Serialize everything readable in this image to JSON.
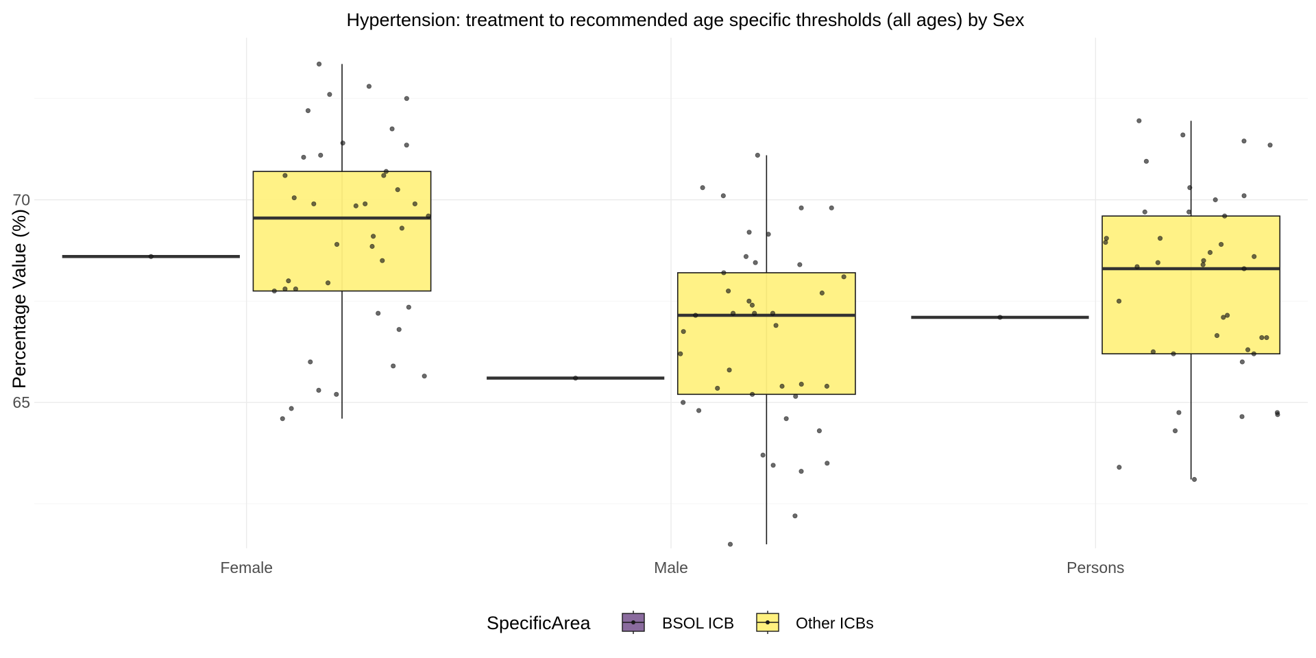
{
  "chart_data": {
    "type": "boxplot",
    "title": "Hypertension: treatment to recommended age specific thresholds (all ages) by Sex",
    "xlabel": "",
    "ylabel": "Percentage Value (%)",
    "categories": [
      "Female",
      "Male",
      "Persons"
    ],
    "ylim": [
      61.4,
      74.0
    ],
    "yticks": [
      65,
      70
    ],
    "grid": true,
    "legend": {
      "title": "SpecificArea",
      "position": "bottom",
      "entries": [
        {
          "name": "BSOL ICB",
          "color": "#8a6b9e"
        },
        {
          "name": "Other ICBs",
          "color": "#fff17f"
        }
      ]
    },
    "series": [
      {
        "name": "BSOL ICB",
        "color": "#8a6b9e",
        "boxes": [
          {
            "category": "Female",
            "min": 68.6,
            "q1": 68.6,
            "median": 68.6,
            "q3": 68.6,
            "max": 68.6
          },
          {
            "category": "Male",
            "min": 65.6,
            "q1": 65.6,
            "median": 65.6,
            "q3": 65.6,
            "max": 65.6
          },
          {
            "category": "Persons",
            "min": 67.1,
            "q1": 67.1,
            "median": 67.1,
            "q3": 67.1,
            "max": 67.1
          }
        ],
        "points": {
          "Female": [
            68.6
          ],
          "Male": [
            65.6
          ],
          "Persons": [
            67.1
          ]
        }
      },
      {
        "name": "Other ICBs",
        "color": "#fff17f",
        "boxes": [
          {
            "category": "Female",
            "min": 64.6,
            "q1": 67.75,
            "median": 69.55,
            "q3": 70.7,
            "max": 73.35
          },
          {
            "category": "Male",
            "min": 61.5,
            "q1": 65.2,
            "median": 67.15,
            "q3": 68.2,
            "max": 71.1
          },
          {
            "category": "Persons",
            "min": 63.1,
            "q1": 66.2,
            "median": 68.3,
            "q3": 69.6,
            "max": 71.95
          }
        ],
        "points": {
          "Female": [
            72.8,
            72.2,
            69.9,
            69.6,
            69.1,
            68.85,
            67.8,
            67.35,
            67.2,
            66.8,
            70.6,
            69.9,
            65.9,
            68.0,
            69.85,
            67.8,
            64.85,
            71.75,
            72.5,
            69.3,
            67.75,
            68.9,
            68.5,
            65.3,
            71.05,
            73.35,
            69.9,
            71.35,
            67.95,
            72.6,
            70.25,
            70.6,
            64.6,
            66.0,
            71.1,
            71.4,
            65.65,
            65.2,
            70.7,
            70.05
          ],
          "Male": [
            68.45,
            69.8,
            67.7,
            67.2,
            67.2,
            65.4,
            65.45,
            64.8,
            65.4,
            67.15,
            68.4,
            67.5,
            69.8,
            68.2,
            68.6,
            69.2,
            65.2,
            68.1,
            67.2,
            66.75,
            70.1,
            70.3,
            65.15,
            66.2,
            65.8,
            67.75,
            67.4,
            65.35,
            64.3,
            63.7,
            63.45,
            63.5,
            64.6,
            63.3,
            65.0,
            66.9,
            71.1,
            69.15,
            62.2,
            61.5
          ],
          "Persons": [
            69.7,
            71.35,
            71.95,
            63.1,
            66.6,
            68.7,
            69.05,
            70.0,
            66.65,
            66.2,
            68.3,
            67.1,
            66.25,
            64.65,
            64.75,
            70.3,
            68.35,
            68.4,
            68.9,
            68.6,
            68.5,
            69.6,
            67.5,
            66.6,
            63.4,
            70.95,
            71.6,
            71.45,
            68.45,
            66.2,
            69.7,
            70.1,
            64.3,
            64.75,
            68.95,
            69.05,
            67.15,
            66.3,
            66.0,
            64.7
          ]
        }
      }
    ]
  }
}
